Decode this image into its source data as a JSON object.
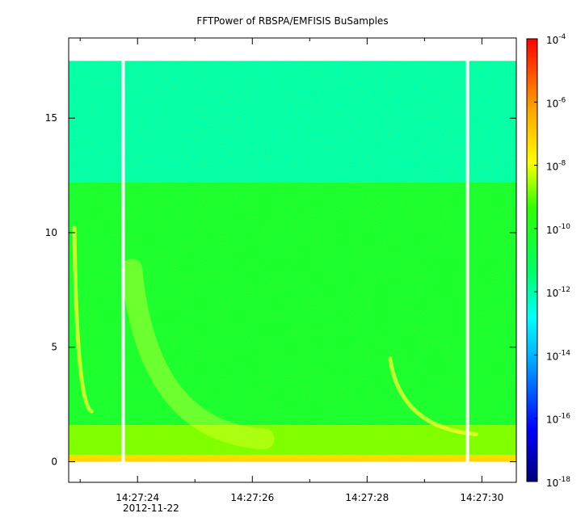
{
  "chart_data": {
    "type": "heatmap",
    "title": "FFTPower of RBSPA/EMFISIS  BuSamples",
    "xlabel": "",
    "ylabel": "",
    "x_axis": {
      "unit": "time",
      "range": [
        "14:27:22.8",
        "14:27:30.6"
      ],
      "ticks": [
        "14:27:24",
        "14:27:26",
        "14:27:28",
        "14:27:30"
      ],
      "date_label": "2012-11-22"
    },
    "y_axis": {
      "range": [
        -0.9,
        18.5
      ],
      "ticks": [
        "0",
        "5",
        "10",
        "15"
      ],
      "data_max": 17.5
    },
    "colorbar": {
      "scale": "log",
      "range": [
        1e-18,
        0.0001
      ],
      "colormap": "rainbow (dark blue to red)",
      "tick_labels": [
        {
          "base": "10",
          "exp": "-4"
        },
        {
          "base": "10",
          "exp": "-6"
        },
        {
          "base": "10",
          "exp": "-8"
        },
        {
          "base": "10",
          "exp": "-10"
        },
        {
          "base": "10",
          "exp": "-12"
        },
        {
          "base": "10",
          "exp": "-14"
        },
        {
          "base": "10",
          "exp": "-16"
        },
        {
          "base": "10",
          "exp": "-18"
        }
      ]
    },
    "data_gaps_seconds": [
      23.75,
      29.75
    ],
    "bands": [
      {
        "y_range": [
          12.2,
          17.5
        ],
        "level_log10": -12.0
      },
      {
        "y_range": [
          1.6,
          12.2
        ],
        "level_log10": -10.3
      },
      {
        "y_range": [
          0.3,
          1.6
        ],
        "level_log10": -8.8
      },
      {
        "y_range": [
          0.0,
          0.3
        ],
        "level_log10": -7.2
      }
    ],
    "features": [
      {
        "name": "dispersed whistler (early)",
        "t_start": 22.9,
        "f_high": 10.2,
        "t_end": 23.2,
        "f_low": 2.2
      },
      {
        "name": "dispersed whistler (main)",
        "t_start": 23.9,
        "f_high": 8.4,
        "t_end": 26.2,
        "f_low": 1.0
      },
      {
        "name": "dispersed whistler (late)",
        "t_start": 28.4,
        "f_high": 4.5,
        "t_end": 29.9,
        "f_low": 1.2
      }
    ]
  }
}
